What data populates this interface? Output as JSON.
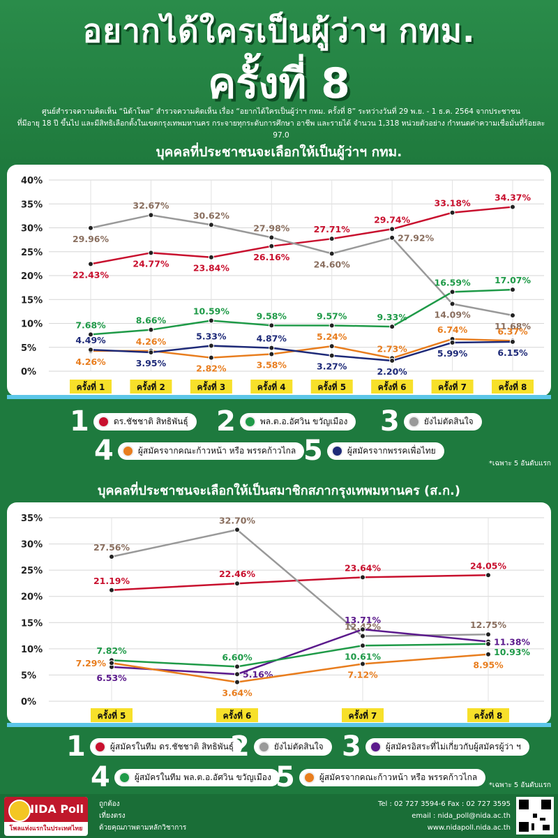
{
  "header": {
    "title_line1": "อยากได้ใครเป็นผู้ว่าฯ กทม.",
    "title_line2": "ครั้งที่ 8",
    "desc_line1": "ศูนย์สำรวจความคิดเห็น “นิด้าโพล” สำรวจความคิดเห็น เรื่อง “อยากได้ใครเป็นผู้ว่าฯ กทม. ครั้งที่ 8” ระหว่างวันที่ 29 พ.ย. - 1 ธ.ค. 2564 จากประชาชน",
    "desc_line2": "ที่มีอายุ 18 ปี ขึ้นไป และมีสิทธิเลือกตั้งในเขตกรุงเทพมหานคร กระจายทุกระดับการศึกษา อาชีพ และรายได้ จำนวน 1,318 หน่วยตัวอย่าง กำหนดค่าความเชื่อมั่นที่ร้อยละ 97.0"
  },
  "chart1_title": "บุคคลที่ประชาชนจะเลือกให้เป็นผู้ว่าฯ กทม.",
  "chart2_title": "บุคคลที่ประชาชนจะเลือกให้เป็นสมาชิกสภากรุงเทพมหานคร (ส.ก.)",
  "legend1": [
    {
      "num": "1",
      "label": "ดร.ชัชชาติ สิทธิพันธุ์",
      "color": "#c8102e"
    },
    {
      "num": "2",
      "label": "พล.ต.อ.อัศวิน ขวัญเมือง",
      "color": "#1f9a48"
    },
    {
      "num": "3",
      "label": "ยังไม่ตัดสินใจ",
      "color": "#999999"
    },
    {
      "num": "4",
      "label": "ผู้สมัครจากคณะก้าวหน้า หรือ พรรคก้าวไกล",
      "color": "#e87d1e"
    },
    {
      "num": "5",
      "label": "ผู้สมัครจากพรรคเพื่อไทย",
      "color": "#1e2a78"
    }
  ],
  "legend2": [
    {
      "num": "1",
      "label": "ผู้สมัครในทีม ดร.ชัชชาติ สิทธิพันธุ์",
      "color": "#c8102e"
    },
    {
      "num": "2",
      "label": "ยังไม่ตัดสินใจ",
      "color": "#999999"
    },
    {
      "num": "3",
      "label": "ผู้สมัครอิสระที่ไม่เกี่ยวกับผู้สมัครผู้ว่า ฯ",
      "color": "#5b1a8c"
    },
    {
      "num": "4",
      "label": "ผู้สมัครในทีม พล.ต.อ.อัศวิน ขวัญเมือง",
      "color": "#1f9a48"
    },
    {
      "num": "5",
      "label": "ผู้สมัครจากคณะก้าวหน้า หรือ พรรคก้าวไกล",
      "color": "#e87d1e"
    }
  ],
  "note1": "*เฉพาะ 5 อันดับแรก",
  "note2": "*เฉพาะ 5 อันดับแรก",
  "chart_data": [
    {
      "type": "line",
      "categories": [
        "ครั้งที่ 1",
        "ครั้งที่ 2",
        "ครั้งที่ 3",
        "ครั้งที่ 4",
        "ครั้งที่ 5",
        "ครั้งที่ 6",
        "ครั้งที่ 7",
        "ครั้งที่ 8"
      ],
      "ylim": [
        0,
        40
      ],
      "yticks": [
        0,
        5,
        10,
        15,
        20,
        25,
        30,
        35,
        40
      ],
      "ytick_labels": [
        "0%",
        "5%",
        "10%",
        "15%",
        "20%",
        "25%",
        "30%",
        "35%",
        "40%"
      ],
      "grid": true,
      "series": [
        {
          "color": "#c8102e",
          "values": [
            22.43,
            24.77,
            23.84,
            26.16,
            27.71,
            29.74,
            33.18,
            34.37
          ],
          "labels": [
            "22.43%",
            "24.77%",
            "23.84%",
            "26.16%",
            "27.71%",
            "29.74%",
            "33.18%",
            "34.37%"
          ],
          "label_pos": [
            "below",
            "below",
            "below",
            "below",
            "above",
            "above",
            "above",
            "above"
          ]
        },
        {
          "color": "#999999",
          "label_color": "#8a6f5f",
          "values": [
            29.96,
            32.67,
            30.62,
            27.98,
            24.6,
            27.92,
            14.09,
            11.68
          ],
          "labels": [
            "29.96%",
            "32.67%",
            "30.62%",
            "27.98%",
            "24.60%",
            "27.92%",
            "14.09%",
            "11.68%"
          ],
          "label_pos": [
            "below",
            "above",
            "above",
            "above",
            "below",
            "right",
            "below",
            "below"
          ]
        },
        {
          "color": "#1f9a48",
          "values": [
            7.68,
            8.66,
            10.59,
            9.58,
            9.57,
            9.33,
            16.59,
            17.07
          ],
          "labels": [
            "7.68%",
            "8.66%",
            "10.59%",
            "9.58%",
            "9.57%",
            "9.33%",
            "16.59%",
            "17.07%"
          ],
          "label_pos": [
            "above",
            "above",
            "above",
            "above",
            "above",
            "above",
            "above",
            "above"
          ]
        },
        {
          "color": "#e87d1e",
          "values": [
            4.26,
            4.26,
            2.82,
            3.58,
            5.24,
            2.73,
            6.74,
            6.37
          ],
          "labels": [
            "4.26%",
            "4.26%",
            "2.82%",
            "3.58%",
            "5.24%",
            "2.73%",
            "6.74%",
            "6.37%"
          ],
          "label_pos": [
            "below",
            "above",
            "below",
            "below",
            "above",
            "above",
            "above",
            "above"
          ]
        },
        {
          "color": "#1e2a78",
          "values": [
            4.49,
            3.95,
            5.33,
            4.87,
            3.27,
            2.2,
            5.99,
            6.15
          ],
          "labels": [
            "4.49%",
            "3.95%",
            "5.33%",
            "4.87%",
            "3.27%",
            "2.20%",
            "5.99%",
            "6.15%"
          ],
          "label_pos": [
            "above",
            "below",
            "above",
            "above",
            "below",
            "below",
            "below",
            "below"
          ]
        }
      ]
    },
    {
      "type": "line",
      "categories": [
        "ครั้งที่ 5",
        "ครั้งที่ 6",
        "ครั้งที่ 7",
        "ครั้งที่ 8"
      ],
      "ylim": [
        0,
        35
      ],
      "yticks": [
        0,
        5,
        10,
        15,
        20,
        25,
        30,
        35
      ],
      "ytick_labels": [
        "0%",
        "5%",
        "10%",
        "15%",
        "20%",
        "25%",
        "30%",
        "35%"
      ],
      "grid": true,
      "series": [
        {
          "color": "#c8102e",
          "values": [
            21.19,
            22.46,
            23.64,
            24.05
          ],
          "labels": [
            "21.19%",
            "22.46%",
            "23.64%",
            "24.05%"
          ],
          "label_pos": [
            "above",
            "above",
            "above",
            "above"
          ]
        },
        {
          "color": "#999999",
          "label_color": "#8a6f5f",
          "values": [
            27.56,
            32.7,
            12.42,
            12.75
          ],
          "labels": [
            "27.56%",
            "32.70%",
            "12.42%",
            "12.75%"
          ],
          "label_pos": [
            "above",
            "above",
            "above",
            "above"
          ]
        },
        {
          "color": "#5b1a8c",
          "values": [
            6.53,
            5.16,
            13.71,
            11.38
          ],
          "labels": [
            "6.53%",
            "5.16%",
            "13.71%",
            "11.38%"
          ],
          "label_pos": [
            "below",
            "right",
            "above",
            "right"
          ]
        },
        {
          "color": "#1f9a48",
          "values": [
            7.82,
            6.6,
            10.61,
            10.93
          ],
          "labels": [
            "7.82%",
            "6.60%",
            "10.61%",
            "10.93%"
          ],
          "label_pos": [
            "above",
            "above",
            "below",
            "right-below"
          ]
        },
        {
          "color": "#e87d1e",
          "values": [
            7.29,
            3.64,
            7.12,
            8.95
          ],
          "labels": [
            "7.29%",
            "3.64%",
            "7.12%",
            "8.95%"
          ],
          "label_pos": [
            "left",
            "below",
            "below",
            "below"
          ]
        }
      ]
    }
  ],
  "footer": {
    "logo_text": "NIDA Poll",
    "logo_sub": "โพลแห่งแรกในประเทศไทย",
    "slogan1": "ถูกต้อง",
    "slogan2": "เที่ยงตรง",
    "slogan3": "ด้วยคุณภาพตามหลักวิชาการ",
    "tel": "Tel : 02 727 3594-6 Fax : 02 727 3595",
    "email": "email : nida_poll@nida.ac.th",
    "web": "www.nidapoll.nida.ac.th"
  }
}
